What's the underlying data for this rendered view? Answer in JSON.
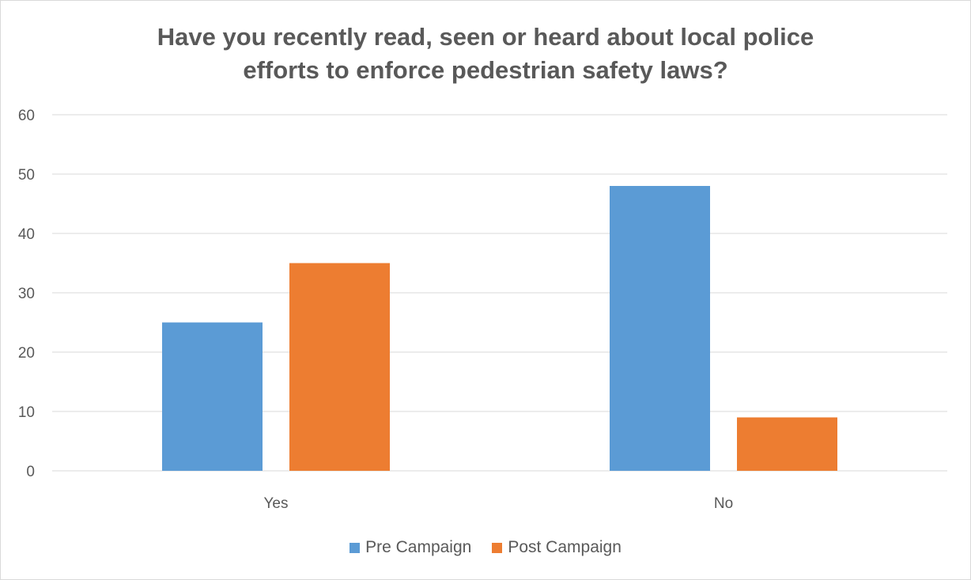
{
  "chart_data": {
    "type": "bar",
    "title_lines": [
      "Have you recently read, seen or heard about local police",
      "efforts to enforce pedestrian safety laws?"
    ],
    "categories": [
      "Yes",
      "No"
    ],
    "series": [
      {
        "name": "Pre Campaign",
        "color": "#5b9bd5",
        "values": [
          25,
          48
        ]
      },
      {
        "name": "Post Campaign",
        "color": "#ed7d31",
        "values": [
          35,
          9
        ]
      }
    ],
    "ylim": [
      0,
      60
    ],
    "yticks": [
      "0",
      "10",
      "20",
      "30",
      "40",
      "50",
      "60"
    ],
    "grid": true,
    "legend_position": "bottom"
  }
}
